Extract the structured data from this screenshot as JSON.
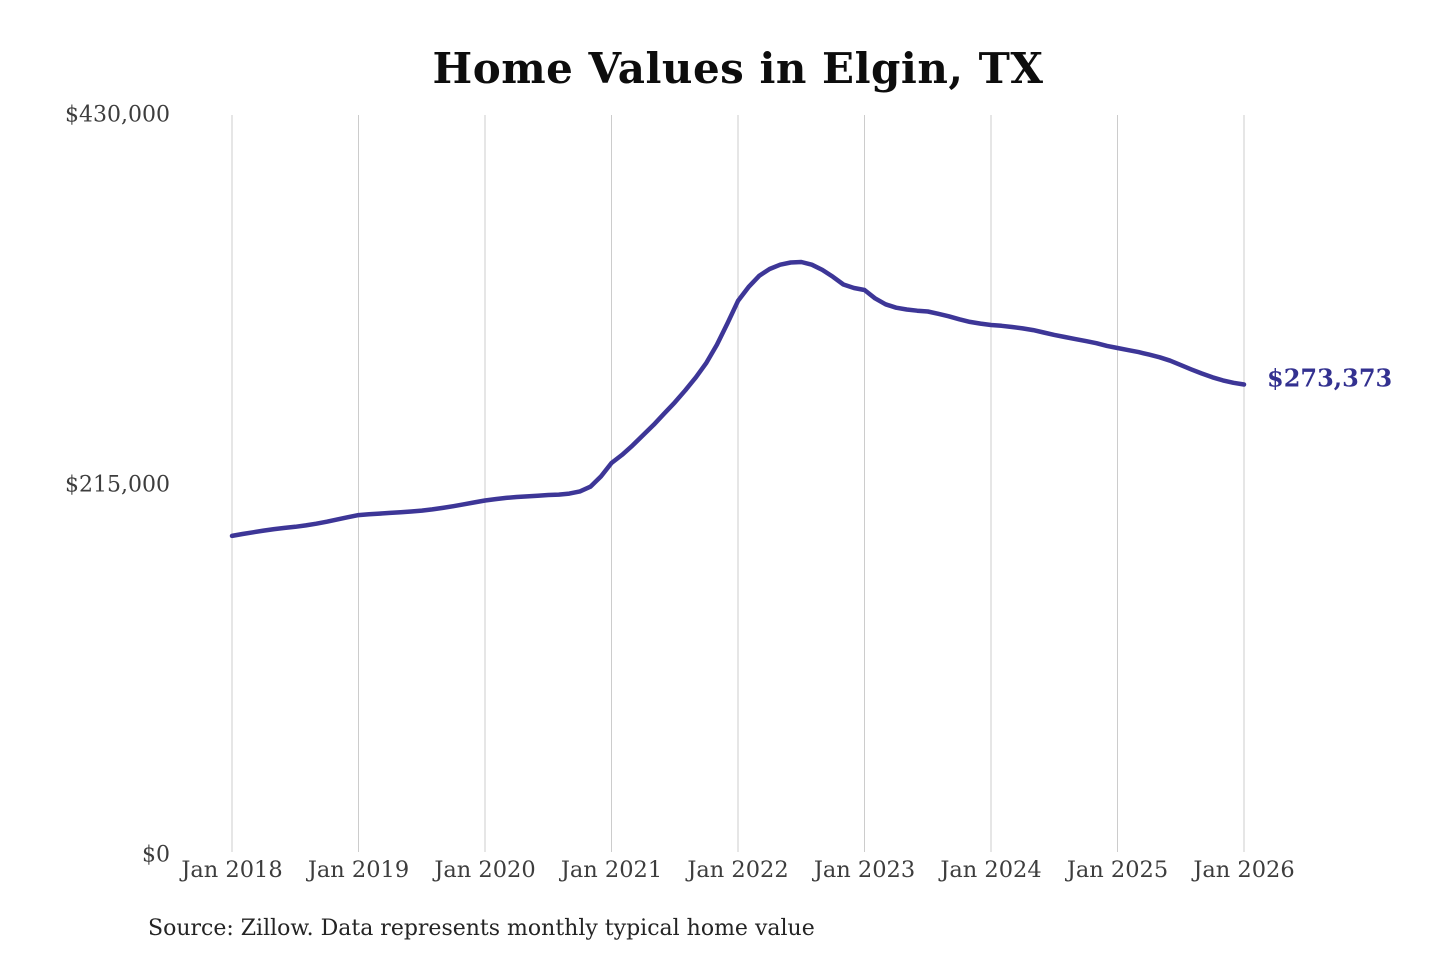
{
  "title": "Home Values in Elgin, TX",
  "source_note": "Source: Zillow. Data represents monthly typical home value",
  "end_label": "$273,373",
  "colors": {
    "line": "#3d3697",
    "end_label": "#333190",
    "gridline": "#cccccc",
    "axis_text": "#3d3d3d",
    "title_text": "#0d0d0d",
    "source_text": "#242424",
    "background": "#ffffff"
  },
  "y_axis": {
    "ticks": [
      {
        "label": "$430,000",
        "value": 430000
      },
      {
        "label": "$215,000",
        "value": 215000
      },
      {
        "label": "$0",
        "value": 0
      }
    ]
  },
  "x_axis": {
    "ticks": [
      {
        "label": "Jan 2018",
        "month_index": 0
      },
      {
        "label": "Jan 2019",
        "month_index": 12
      },
      {
        "label": "Jan 2020",
        "month_index": 24
      },
      {
        "label": "Jan 2021",
        "month_index": 36
      },
      {
        "label": "Jan 2022",
        "month_index": 48
      },
      {
        "label": "Jan 2023",
        "month_index": 60
      },
      {
        "label": "Jan 2024",
        "month_index": 72
      },
      {
        "label": "Jan 2025",
        "month_index": 84
      },
      {
        "label": "Jan 2026",
        "month_index": 96
      }
    ]
  },
  "chart_data": {
    "type": "line",
    "title": "Home Values in Elgin, TX",
    "unit": "USD",
    "frequency": "monthly",
    "start_month": "2018-01",
    "end_month": "2026-01",
    "ylim": [
      0,
      430000
    ],
    "grid": "vertical-only",
    "legend": "none",
    "final_value": 273373,
    "final_value_label": "$273,373",
    "series": [
      {
        "name": "Typical home value",
        "values": [
          185400,
          186500,
          187500,
          188500,
          189400,
          190100,
          190700,
          191500,
          192500,
          193700,
          195000,
          196300,
          197500,
          198000,
          198400,
          198800,
          199200,
          199600,
          200100,
          200800,
          201700,
          202700,
          203800,
          204900,
          206000,
          206800,
          207500,
          208000,
          208400,
          208800,
          209200,
          209400,
          210000,
          211300,
          214000,
          220000,
          227800,
          232500,
          238000,
          244000,
          250000,
          256500,
          263000,
          270000,
          277500,
          286000,
          296500,
          309000,
          322000,
          330000,
          336500,
          340500,
          343000,
          344300,
          344600,
          343000,
          340000,
          336000,
          331500,
          329500,
          328300,
          323500,
          320000,
          318000,
          317000,
          316300,
          315800,
          314500,
          313000,
          311300,
          309800,
          308800,
          308000,
          307500,
          306800,
          306000,
          305000,
          303600,
          302200,
          301000,
          299800,
          298600,
          297400,
          295800,
          294600,
          293400,
          292200,
          290800,
          289200,
          287200,
          284700,
          282200,
          279800,
          277600,
          275800,
          274400,
          273373
        ]
      }
    ]
  }
}
